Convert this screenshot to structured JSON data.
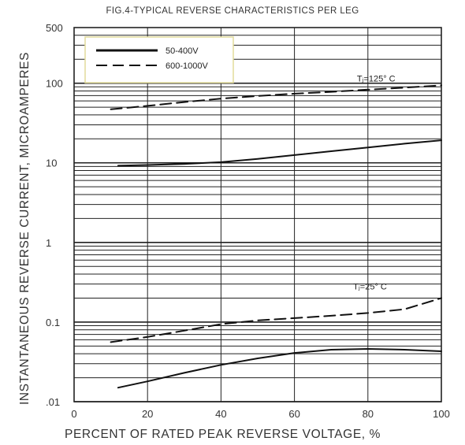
{
  "chart_data": {
    "type": "line",
    "title": "FIG.4-TYPICAL REVERSE CHARACTERISTICS PER LEG",
    "xlabel": "PERCENT OF RATED PEAK REVERSE VOLTAGE, %",
    "ylabel": "INSTANTANEOUS REVERSE CURRENT, MICROAMPERES",
    "xlim": [
      0,
      100
    ],
    "ylim": [
      0.01,
      500
    ],
    "yscale": "log",
    "grid": true,
    "x_ticks": [
      "0",
      "20",
      "40",
      "60",
      "80",
      "100"
    ],
    "y_ticks": [
      {
        "value": 500,
        "label": "500"
      },
      {
        "value": 100,
        "label": "100"
      },
      {
        "value": 10,
        "label": "10"
      },
      {
        "value": 1,
        "label": "1"
      },
      {
        "value": 0.1,
        "label": "0.1"
      },
      {
        "value": 0.01,
        "label": ".01"
      }
    ],
    "legend_position": "top-left",
    "legend": [
      {
        "label": "50-400V",
        "style": "solid"
      },
      {
        "label": "600-1000V",
        "style": "dashed"
      }
    ],
    "annotations": [
      {
        "text": "Tⱼ=125° C",
        "x": 77,
        "y": 115
      },
      {
        "text": "Tⱼ=25° C",
        "x": 76,
        "y": 0.28
      }
    ],
    "series": [
      {
        "style": "solid",
        "condition": "Tⱼ=125° C",
        "x": [
          12,
          20,
          30,
          40,
          50,
          60,
          70,
          80,
          90,
          100
        ],
        "y": [
          9.2,
          9.4,
          9.7,
          10.2,
          11.2,
          12.5,
          14,
          15.6,
          17.4,
          19.2
        ]
      },
      {
        "style": "dashed",
        "condition": "Tⱼ=125° C",
        "x": [
          10,
          20,
          30,
          40,
          50,
          60,
          70,
          80,
          90,
          100
        ],
        "y": [
          47,
          52,
          58,
          64,
          69,
          74,
          78,
          83,
          88,
          94
        ]
      },
      {
        "style": "solid",
        "condition": "Tⱼ=25° C",
        "x": [
          12,
          20,
          30,
          40,
          50,
          60,
          70,
          80,
          90,
          100
        ],
        "y": [
          0.015,
          0.018,
          0.023,
          0.029,
          0.035,
          0.041,
          0.045,
          0.046,
          0.045,
          0.043
        ]
      },
      {
        "style": "dashed",
        "condition": "Tⱼ=25° C",
        "x": [
          10,
          20,
          30,
          40,
          50,
          60,
          70,
          80,
          90,
          100
        ],
        "y": [
          0.056,
          0.065,
          0.078,
          0.094,
          0.105,
          0.112,
          0.12,
          0.13,
          0.145,
          0.2
        ]
      }
    ]
  }
}
